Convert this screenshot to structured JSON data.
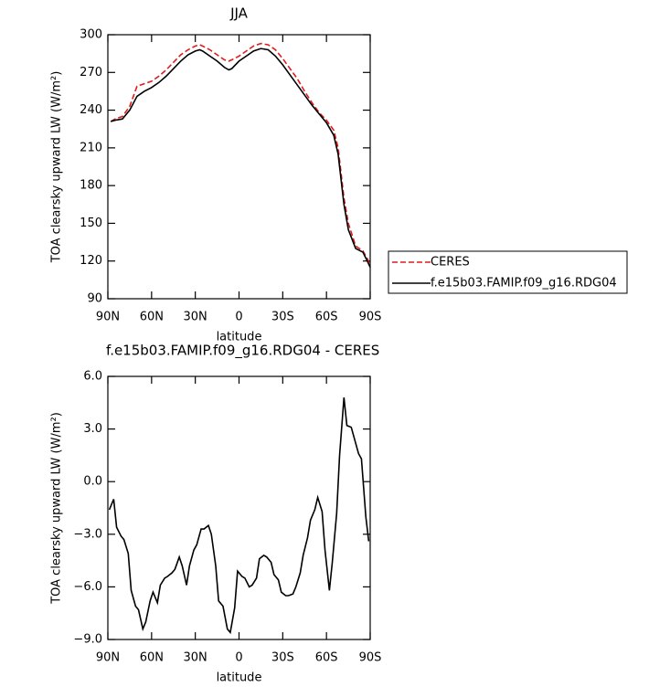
{
  "chart_data": [
    {
      "type": "line",
      "title": "JJA",
      "xlabel": "latitude",
      "ylabel": "TOA clearsky upward LW (W/m²)",
      "xlim": [
        90,
        -90
      ],
      "ylim": [
        90,
        300
      ],
      "xticks": [
        {
          "value": 90,
          "label": "90N"
        },
        {
          "value": 60,
          "label": "60N"
        },
        {
          "value": 30,
          "label": "30N"
        },
        0,
        {
          "value": -30,
          "label": "30S"
        },
        {
          "value": -60,
          "label": "60S"
        },
        {
          "value": -90,
          "label": "90S"
        }
      ],
      "yticks": [
        90,
        120,
        150,
        180,
        210,
        240,
        270,
        300
      ],
      "legend": "outside right",
      "x": [
        88,
        85,
        80,
        75,
        70,
        65,
        60,
        55,
        50,
        45,
        40,
        35,
        30,
        27,
        25,
        20,
        15,
        10,
        7,
        5,
        0,
        -5,
        -10,
        -15,
        -20,
        -25,
        -30,
        -35,
        -40,
        -45,
        -50,
        -55,
        -60,
        -65,
        -68,
        -70,
        -72,
        -75,
        -80,
        -85,
        -88,
        -90
      ],
      "series": [
        {
          "name": "CERES",
          "color": "#e31a1c",
          "dashed": true,
          "values": [
            231,
            233,
            235,
            243,
            259,
            261,
            263,
            267,
            272,
            278,
            284,
            288,
            291,
            292,
            291,
            288,
            284,
            280,
            279,
            280,
            283,
            287,
            291,
            293,
            292,
            288,
            281,
            273,
            265,
            255,
            246,
            238,
            232,
            224,
            210,
            190,
            170,
            150,
            132,
            128,
            122,
            117
          ]
        },
        {
          "name": "f.e15b03.FAMIP.f09_g16.RDG04",
          "color": "#000000",
          "dashed": false,
          "values": [
            231,
            232,
            233,
            240,
            251,
            255,
            258,
            262,
            267,
            273,
            279,
            284,
            287,
            288,
            287,
            283,
            279,
            274,
            272,
            273,
            279,
            283,
            287,
            289,
            288,
            283,
            276,
            268,
            260,
            252,
            244,
            237,
            230,
            220,
            205,
            185,
            165,
            145,
            130,
            127,
            120,
            115
          ]
        }
      ]
    },
    {
      "type": "line",
      "title": "f.e15b03.FAMIP.f09_g16.RDG04 - CERES",
      "xlabel": "latitude",
      "ylabel": "TOA clearsky upward LW (W/m²)",
      "xlim": [
        90,
        -90
      ],
      "ylim": [
        -9,
        6
      ],
      "xticks": [
        {
          "value": 90,
          "label": "90N"
        },
        {
          "value": 60,
          "label": "60N"
        },
        {
          "value": 30,
          "label": "30N"
        },
        0,
        {
          "value": -30,
          "label": "30S"
        },
        {
          "value": -60,
          "label": "60S"
        },
        {
          "value": -90,
          "label": "90S"
        }
      ],
      "yticks": [
        {
          "value": 6,
          "label": "6.0"
        },
        {
          "value": 3,
          "label": "3.0"
        },
        {
          "value": 0,
          "label": "0.0"
        },
        {
          "value": -3,
          "label": "−3.0"
        },
        {
          "value": -6,
          "label": "−6.0"
        },
        {
          "value": -9,
          "label": "−9.0"
        }
      ],
      "x": [
        89,
        86,
        84,
        81,
        79,
        76,
        74,
        71,
        69,
        66,
        64,
        61,
        59,
        56,
        54,
        51,
        49,
        46,
        44,
        41,
        39,
        36,
        34,
        31,
        29,
        26,
        24,
        21,
        19,
        16,
        14,
        11,
        8,
        6,
        3,
        1,
        -2,
        -4,
        -7,
        -9,
        -12,
        -14,
        -17,
        -19,
        -22,
        -24,
        -27,
        -29,
        -32,
        -34,
        -37,
        -39,
        -42,
        -44,
        -47,
        -49,
        -52,
        -54,
        -57,
        -59,
        -62,
        -64,
        -67,
        -69,
        -72,
        -74,
        -77,
        -79,
        -82,
        -84,
        -87,
        -89
      ],
      "series": [
        {
          "color": "#000000",
          "dashed": false,
          "values": [
            -1.6,
            -1.0,
            -2.6,
            -3.1,
            -3.3,
            -4.1,
            -6.2,
            -7.1,
            -7.3,
            -8.4,
            -8.0,
            -6.8,
            -6.3,
            -6.9,
            -5.9,
            -5.5,
            -5.4,
            -5.2,
            -5.0,
            -4.3,
            -4.8,
            -5.9,
            -4.8,
            -3.9,
            -3.6,
            -2.7,
            -2.7,
            -2.5,
            -3.0,
            -4.8,
            -6.8,
            -7.1,
            -8.4,
            -8.6,
            -7.2,
            -5.1,
            -5.4,
            -5.5,
            -6.0,
            -5.9,
            -5.5,
            -4.4,
            -4.2,
            -4.3,
            -4.6,
            -5.3,
            -5.6,
            -6.3,
            -6.5,
            -6.5,
            -6.4,
            -6.0,
            -5.2,
            -4.2,
            -3.2,
            -2.2,
            -1.6,
            -0.9,
            -1.7,
            -3.9,
            -6.2,
            -4.6,
            -1.8,
            1.5,
            4.8,
            3.2,
            3.1,
            2.5,
            1.6,
            1.3,
            -2.0,
            -3.4
          ]
        }
      ]
    }
  ]
}
